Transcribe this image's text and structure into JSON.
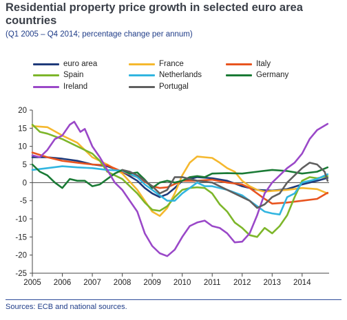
{
  "title": "Residential property price growth in selected euro area countries",
  "subtitle": "(Q1 2005 – Q4 2014; percentage change per annum)",
  "source": "Sources: ECB and national sources.",
  "chart_data": {
    "type": "line",
    "xlim": [
      2005,
      2014.9
    ],
    "ylim": [
      -25,
      20
    ],
    "x_ticks": [
      "2005",
      "2006",
      "2007",
      "2008",
      "2009",
      "2010",
      "2011",
      "2012",
      "2013",
      "2014"
    ],
    "y_ticks": [
      "20",
      "15",
      "10",
      "5",
      "0",
      "-5",
      "-10",
      "-15",
      "-20",
      "-25"
    ],
    "legend_position": "top",
    "grid": false,
    "series": [
      {
        "name": "euro area",
        "color": "#1f3a7a",
        "points": [
          [
            2005,
            7
          ],
          [
            2005.5,
            7
          ],
          [
            2006,
            6.6
          ],
          [
            2006.5,
            6
          ],
          [
            2007,
            5
          ],
          [
            2007.5,
            4.5
          ],
          [
            2008,
            3
          ],
          [
            2008.5,
            0.5
          ],
          [
            2008.75,
            -1.5
          ],
          [
            2009,
            -3
          ],
          [
            2009.25,
            -4
          ],
          [
            2009.5,
            -3.2
          ],
          [
            2009.75,
            -1.5
          ],
          [
            2010,
            0.5
          ],
          [
            2010.5,
            1.5
          ],
          [
            2011,
            1.2
          ],
          [
            2011.5,
            0.5
          ],
          [
            2012,
            -1
          ],
          [
            2012.5,
            -2
          ],
          [
            2013,
            -2.2
          ],
          [
            2013.5,
            -1.8
          ],
          [
            2014,
            -0.5
          ],
          [
            2014.5,
            0.5
          ],
          [
            2014.85,
            1.3
          ]
        ]
      },
      {
        "name": "France",
        "color": "#f5b82e",
        "points": [
          [
            2005,
            15.6
          ],
          [
            2005.5,
            15.3
          ],
          [
            2006,
            13
          ],
          [
            2006.5,
            11
          ],
          [
            2007,
            7
          ],
          [
            2007.5,
            5
          ],
          [
            2008,
            2.5
          ],
          [
            2008.5,
            -2
          ],
          [
            2008.75,
            -5
          ],
          [
            2009,
            -8
          ],
          [
            2009.25,
            -9.2
          ],
          [
            2009.5,
            -7
          ],
          [
            2009.75,
            -3
          ],
          [
            2010,
            2
          ],
          [
            2010.25,
            5.5
          ],
          [
            2010.5,
            7.2
          ],
          [
            2010.75,
            7
          ],
          [
            2011,
            6.8
          ],
          [
            2011.25,
            5.5
          ],
          [
            2011.5,
            4
          ],
          [
            2011.75,
            3
          ],
          [
            2012,
            0.5
          ],
          [
            2012.25,
            -1
          ],
          [
            2012.5,
            -2
          ],
          [
            2012.75,
            -2.5
          ],
          [
            2013,
            -2.3
          ],
          [
            2013.5,
            -2
          ],
          [
            2014,
            -1.5
          ],
          [
            2014.5,
            -1.8
          ],
          [
            2014.85,
            -3
          ]
        ]
      },
      {
        "name": "Italy",
        "color": "#e8541f",
        "points": [
          [
            2005,
            8.3
          ],
          [
            2005.5,
            7
          ],
          [
            2006,
            6
          ],
          [
            2006.5,
            5.5
          ],
          [
            2007,
            5
          ],
          [
            2007.5,
            4.8
          ],
          [
            2008,
            3
          ],
          [
            2008.5,
            1.5
          ],
          [
            2009,
            -1
          ],
          [
            2009.25,
            -1.5
          ],
          [
            2009.5,
            -1.3
          ],
          [
            2010,
            0.5
          ],
          [
            2010.5,
            0.5
          ],
          [
            2011,
            0.8
          ],
          [
            2011.5,
            0
          ],
          [
            2012,
            -0.5
          ],
          [
            2012.25,
            -1.5
          ],
          [
            2012.5,
            -3
          ],
          [
            2012.75,
            -4.5
          ],
          [
            2013,
            -5.8
          ],
          [
            2013.5,
            -5.5
          ],
          [
            2014,
            -5
          ],
          [
            2014.5,
            -4.5
          ],
          [
            2014.85,
            -2.8
          ]
        ]
      },
      {
        "name": "Spain",
        "color": "#7db62a",
        "points": [
          [
            2005,
            16
          ],
          [
            2005.25,
            14
          ],
          [
            2005.5,
            13.5
          ],
          [
            2006,
            12
          ],
          [
            2006.5,
            10
          ],
          [
            2007,
            8
          ],
          [
            2007.25,
            6
          ],
          [
            2007.5,
            3
          ],
          [
            2008,
            1
          ],
          [
            2008.5,
            -3
          ],
          [
            2008.75,
            -5.5
          ],
          [
            2009,
            -7.5
          ],
          [
            2009.25,
            -7.8
          ],
          [
            2009.5,
            -6.5
          ],
          [
            2009.75,
            -4
          ],
          [
            2010,
            -2
          ],
          [
            2010.25,
            -1.5
          ],
          [
            2010.5,
            -1.3
          ],
          [
            2010.75,
            -1.5
          ],
          [
            2011,
            -3
          ],
          [
            2011.25,
            -6
          ],
          [
            2011.5,
            -8
          ],
          [
            2011.75,
            -11
          ],
          [
            2012,
            -12.5
          ],
          [
            2012.25,
            -14.5
          ],
          [
            2012.5,
            -15
          ],
          [
            2012.75,
            -12.5
          ],
          [
            2013,
            -14
          ],
          [
            2013.25,
            -12
          ],
          [
            2013.5,
            -9
          ],
          [
            2013.75,
            -4
          ],
          [
            2014,
            0.5
          ],
          [
            2014.25,
            1.5
          ],
          [
            2014.5,
            1.2
          ],
          [
            2014.85,
            1.8
          ]
        ]
      },
      {
        "name": "Netherlands",
        "color": "#31b5e0",
        "points": [
          [
            2005,
            3.5
          ],
          [
            2005.5,
            4
          ],
          [
            2006,
            4.5
          ],
          [
            2006.5,
            4.2
          ],
          [
            2007,
            4
          ],
          [
            2007.5,
            3.5
          ],
          [
            2008,
            3.3
          ],
          [
            2008.5,
            1.5
          ],
          [
            2008.75,
            -0.5
          ],
          [
            2009,
            -2
          ],
          [
            2009.25,
            -3.5
          ],
          [
            2009.5,
            -5
          ],
          [
            2009.75,
            -5
          ],
          [
            2010,
            -3
          ],
          [
            2010.25,
            -1.5
          ],
          [
            2010.5,
            0
          ],
          [
            2010.75,
            -1
          ],
          [
            2011,
            -1
          ],
          [
            2011.5,
            -2
          ],
          [
            2012,
            -3.5
          ],
          [
            2012.25,
            -5
          ],
          [
            2012.5,
            -6.5
          ],
          [
            2012.75,
            -8
          ],
          [
            2013,
            -8.5
          ],
          [
            2013.25,
            -8.8
          ],
          [
            2013.5,
            -4
          ],
          [
            2013.75,
            -3
          ],
          [
            2014,
            0
          ],
          [
            2014.5,
            1
          ],
          [
            2014.85,
            2.3
          ]
        ]
      },
      {
        "name": "Germany",
        "color": "#1a7a35",
        "points": [
          [
            2005,
            5
          ],
          [
            2005.25,
            3
          ],
          [
            2005.5,
            2
          ],
          [
            2005.75,
            0
          ],
          [
            2006,
            -1.5
          ],
          [
            2006.25,
            1
          ],
          [
            2006.5,
            0.5
          ],
          [
            2006.75,
            0.5
          ],
          [
            2007,
            -1
          ],
          [
            2007.25,
            -0.5
          ],
          [
            2007.5,
            1
          ],
          [
            2007.75,
            2.5
          ],
          [
            2008,
            3.5
          ],
          [
            2008.25,
            2.5
          ],
          [
            2008.5,
            2.8
          ],
          [
            2008.75,
            0.8
          ],
          [
            2009,
            -1.5
          ],
          [
            2009.25,
            0
          ],
          [
            2009.5,
            0.5
          ],
          [
            2009.75,
            0
          ],
          [
            2010,
            0.5
          ],
          [
            2010.25,
            1.5
          ],
          [
            2010.5,
            1.8
          ],
          [
            2010.75,
            1.5
          ],
          [
            2011,
            2.5
          ],
          [
            2011.5,
            2.6
          ],
          [
            2012,
            2.5
          ],
          [
            2012.5,
            3
          ],
          [
            2013,
            3.5
          ],
          [
            2013.5,
            3.2
          ],
          [
            2014,
            2.5
          ],
          [
            2014.5,
            3
          ],
          [
            2014.85,
            4.2
          ]
        ]
      },
      {
        "name": "Ireland",
        "color": "#9a48c8",
        "points": [
          [
            2005,
            7.5
          ],
          [
            2005.25,
            7
          ],
          [
            2005.5,
            9
          ],
          [
            2005.75,
            12
          ],
          [
            2006,
            13
          ],
          [
            2006.25,
            16
          ],
          [
            2006.4,
            16.8
          ],
          [
            2006.6,
            14
          ],
          [
            2006.75,
            14.8
          ],
          [
            2007,
            10
          ],
          [
            2007.25,
            7
          ],
          [
            2007.5,
            3.5
          ],
          [
            2007.75,
            0
          ],
          [
            2008,
            -2
          ],
          [
            2008.25,
            -5
          ],
          [
            2008.5,
            -8
          ],
          [
            2008.75,
            -14
          ],
          [
            2009,
            -17.5
          ],
          [
            2009.25,
            -19.5
          ],
          [
            2009.5,
            -20.3
          ],
          [
            2009.75,
            -18.5
          ],
          [
            2010,
            -15
          ],
          [
            2010.25,
            -12
          ],
          [
            2010.5,
            -11
          ],
          [
            2010.75,
            -10.5
          ],
          [
            2011,
            -12
          ],
          [
            2011.25,
            -12.5
          ],
          [
            2011.5,
            -14
          ],
          [
            2011.75,
            -16.5
          ],
          [
            2012,
            -16.3
          ],
          [
            2012.25,
            -14
          ],
          [
            2012.5,
            -9
          ],
          [
            2012.75,
            -3
          ],
          [
            2013,
            0
          ],
          [
            2013.25,
            2
          ],
          [
            2013.5,
            4
          ],
          [
            2013.75,
            5.5
          ],
          [
            2014,
            8
          ],
          [
            2014.25,
            12
          ],
          [
            2014.5,
            14.5
          ],
          [
            2014.85,
            16.2
          ]
        ]
      },
      {
        "name": "Portugal",
        "color": "#5f5f5f",
        "points": [
          [
            2008,
            3.5
          ],
          [
            2008.25,
            3
          ],
          [
            2008.5,
            2
          ],
          [
            2008.75,
            0.5
          ],
          [
            2009,
            -1
          ],
          [
            2009.25,
            -3
          ],
          [
            2009.5,
            -2
          ],
          [
            2009.75,
            1.5
          ],
          [
            2010,
            1.5
          ],
          [
            2010.5,
            0.5
          ],
          [
            2011,
            0
          ],
          [
            2011.5,
            -2
          ],
          [
            2012,
            -4
          ],
          [
            2012.25,
            -5
          ],
          [
            2012.5,
            -7
          ],
          [
            2012.75,
            -6
          ],
          [
            2013,
            -4
          ],
          [
            2013.25,
            -3
          ],
          [
            2013.5,
            0
          ],
          [
            2013.75,
            2
          ],
          [
            2014,
            4
          ],
          [
            2014.25,
            5.5
          ],
          [
            2014.5,
            5
          ],
          [
            2014.75,
            3
          ],
          [
            2014.85,
            0.5
          ]
        ]
      }
    ]
  }
}
